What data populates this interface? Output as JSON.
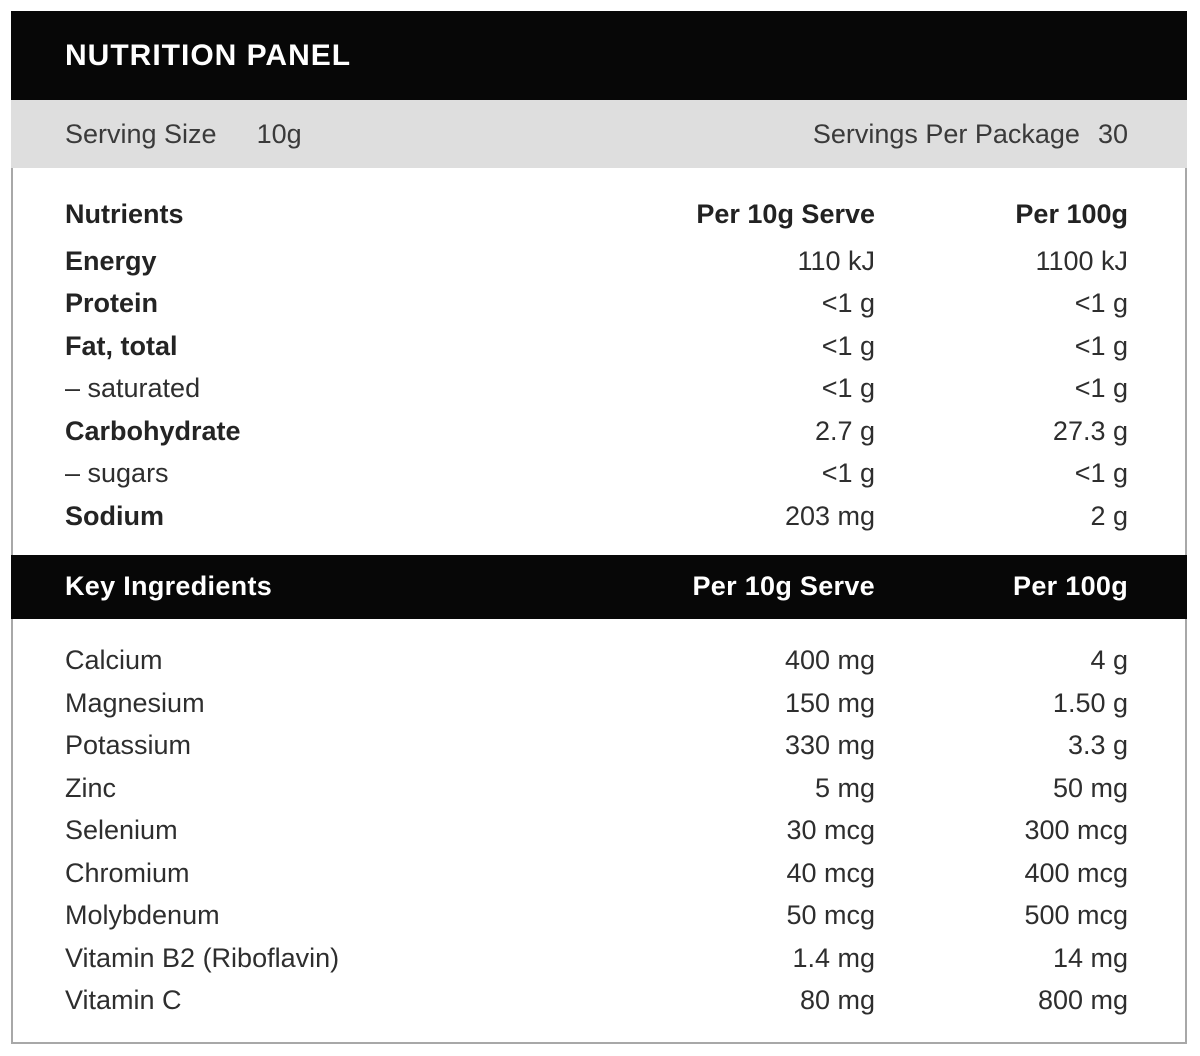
{
  "panel": {
    "title": "NUTRITION PANEL",
    "serving": {
      "size_label": "Serving Size",
      "size_value": "10g",
      "per_package_label": "Servings Per Package",
      "per_package_value": "30"
    },
    "nutrients_header": {
      "col1": "Nutrients",
      "col2": "Per 10g Serve",
      "col3": "Per 100g"
    },
    "nutrients": [
      {
        "name": "Energy",
        "bold": true,
        "per_serve": "110 kJ",
        "per_100g": "1100 kJ"
      },
      {
        "name": "Protein",
        "bold": true,
        "per_serve": "<1 g",
        "per_100g": "<1 g"
      },
      {
        "name": "Fat, total",
        "bold": true,
        "per_serve": "<1 g",
        "per_100g": "<1 g"
      },
      {
        "name": "– saturated",
        "bold": false,
        "per_serve": "<1 g",
        "per_100g": "<1 g"
      },
      {
        "name": "Carbohydrate",
        "bold": true,
        "per_serve": "2.7 g",
        "per_100g": "27.3 g"
      },
      {
        "name": "– sugars",
        "bold": false,
        "per_serve": "<1 g",
        "per_100g": "<1 g"
      },
      {
        "name": "Sodium",
        "bold": true,
        "per_serve": "203 mg",
        "per_100g": "2 g"
      }
    ],
    "key_ingredients_header": {
      "col1": "Key Ingredients",
      "col2": "Per 10g Serve",
      "col3": "Per 100g"
    },
    "key_ingredients": [
      {
        "name": "Calcium",
        "bold": false,
        "per_serve": "400 mg",
        "per_100g": "4 g"
      },
      {
        "name": "Magnesium",
        "bold": false,
        "per_serve": "150 mg",
        "per_100g": "1.50 g"
      },
      {
        "name": "Potassium",
        "bold": false,
        "per_serve": "330 mg",
        "per_100g": "3.3 g"
      },
      {
        "name": "Zinc",
        "bold": false,
        "per_serve": "5 mg",
        "per_100g": "50 mg"
      },
      {
        "name": "Selenium",
        "bold": false,
        "per_serve": "30 mcg",
        "per_100g": "300 mcg"
      },
      {
        "name": "Chromium",
        "bold": false,
        "per_serve": "40 mcg",
        "per_100g": "400 mcg"
      },
      {
        "name": "Molybdenum",
        "bold": false,
        "per_serve": "50 mcg",
        "per_100g": "500 mcg"
      },
      {
        "name": "Vitamin B2 (Riboflavin)",
        "bold": false,
        "per_serve": "1.4 mg",
        "per_100g": "14 mg"
      },
      {
        "name": "Vitamin C",
        "bold": false,
        "per_serve": "80 mg",
        "per_100g": "800 mg"
      }
    ],
    "colors": {
      "bar_black": "#070707",
      "serving_gray": "#dedede",
      "border_gray": "#a8a8a8",
      "text": "#2e2e2e"
    }
  }
}
